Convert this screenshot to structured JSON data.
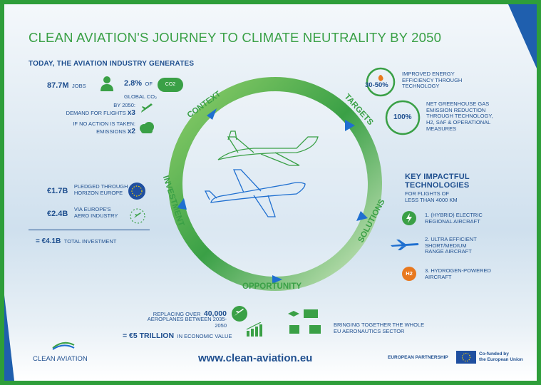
{
  "title": "CLEAN AVIATION'S JOURNEY TO CLIMATE NEUTRALITY BY 2050",
  "today": {
    "heading": "TODAY, THE AVIATION INDUSTRY GENERATES",
    "jobs_value": "87.7M",
    "jobs_label": "JOBS",
    "co2_value": "2.8%",
    "co2_label_1": "OF",
    "co2_label_2": "GLOBAL CO₂",
    "co2_icon_text": "CO2",
    "demand_line1": "BY 2050:",
    "demand_line2": "DEMAND FOR FLIGHTS",
    "demand_mult": "x3",
    "emissions_line1": "IF NO ACTION IS TAKEN:",
    "emissions_line2": "EMISSIONS",
    "emissions_mult": "x2"
  },
  "targets": {
    "t1_value": "30-50%",
    "t1_text": [
      "IMPROVED ENERGY",
      "EFFICIENCY THROUGH",
      "TECHNOLOGY"
    ],
    "t2_value": "100%",
    "t2_text": [
      "NET GREENHOUSE GAS",
      "EMISSION REDUCTION",
      "THROUGH TECHNOLOGY,",
      "H2, SAF & OPERATIONAL",
      "MEASURES"
    ]
  },
  "cycle": {
    "context": "CONTEXT",
    "targets": "TARGETS",
    "solutions": "SOLUTIONS",
    "opportunity": "OPPORTUNITY",
    "investment": "INVESTMENT"
  },
  "investment": {
    "i1_value": "€1.7B",
    "i1_text": [
      "PLEDGED THROUGH",
      "HORIZON EUROPE"
    ],
    "i2_value": "€2.4B",
    "i2_text": [
      "VIA EUROPE'S",
      "AERO INDUSTRY"
    ],
    "total_value": "= €4.1B",
    "total_label": "TOTAL INVESTMENT"
  },
  "technologies": {
    "heading": [
      "KEY IMPACTFUL",
      "TECHNOLOGIES"
    ],
    "sub": [
      "FOR FLIGHTS OF",
      "LESS THAN 4000 KM"
    ],
    "items": [
      [
        "1. (HYBRID) ELECTRIC",
        "REGIONAL AIRCRAFT"
      ],
      [
        "2. ULTRA EFFICIENT",
        "SHORT/MEDIUM",
        "RANGE AIRCRAFT"
      ],
      [
        "3. HYDROGEN-POWERED",
        "AIRCRAFT"
      ]
    ],
    "h2_badge": "H2"
  },
  "opportunity": {
    "replace_line1": "REPLACING OVER",
    "replace_value": "40,000",
    "replace_line2": "AEROPLANES BETWEEN 2035-2050",
    "econ_value": "= €5 TRILLION",
    "econ_label": "IN ECONOMIC VALUE",
    "sector": [
      "BRINGING TOGETHER THE WHOLE",
      "EU AERONAUTICS SECTOR"
    ]
  },
  "footer": {
    "logo_text": "CLEAN AVIATION",
    "url": "www.clean-aviation.eu",
    "partnership": "EUROPEAN PARTNERSHIP",
    "cofunded": [
      "Co-funded by",
      "the European Union"
    ]
  },
  "colors": {
    "green": "#3aa046",
    "blue": "#1f4f8f",
    "orange": "#e8781e",
    "eu_blue": "#1f4fa0"
  }
}
